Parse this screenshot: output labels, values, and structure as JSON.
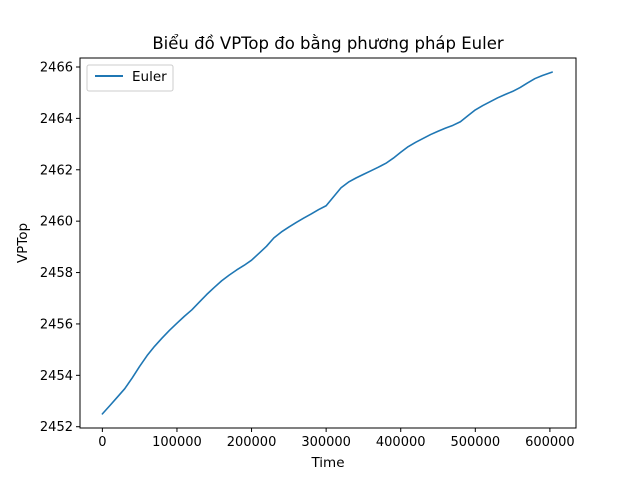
{
  "chart_data": {
    "type": "line",
    "title": "Biểu đồ VPTop đo bằng phương pháp Euler",
    "xlabel": "Time",
    "ylabel": "VPTop",
    "xlim": [
      -30000,
      635000
    ],
    "ylim": [
      2451.95,
      2466.35
    ],
    "xticks": [
      0,
      100000,
      200000,
      300000,
      400000,
      500000,
      600000
    ],
    "yticks": [
      2452,
      2454,
      2456,
      2458,
      2460,
      2462,
      2464,
      2466
    ],
    "grid": false,
    "legend_position": "upper-left",
    "series": [
      {
        "name": "Euler",
        "color": "#1f77b4",
        "x": [
          0,
          10000,
          20000,
          30000,
          40000,
          50000,
          60000,
          70000,
          80000,
          90000,
          100000,
          110000,
          120000,
          130000,
          140000,
          150000,
          160000,
          170000,
          180000,
          190000,
          200000,
          210000,
          220000,
          230000,
          240000,
          250000,
          260000,
          270000,
          280000,
          290000,
          300000,
          310000,
          320000,
          330000,
          340000,
          350000,
          360000,
          370000,
          380000,
          390000,
          400000,
          410000,
          420000,
          430000,
          440000,
          450000,
          460000,
          470000,
          480000,
          490000,
          500000,
          510000,
          520000,
          530000,
          540000,
          550000,
          560000,
          570000,
          580000,
          590000,
          603000
        ],
        "values": [
          2452.5,
          2452.82,
          2453.15,
          2453.48,
          2453.9,
          2454.35,
          2454.77,
          2455.13,
          2455.45,
          2455.75,
          2456.03,
          2456.3,
          2456.55,
          2456.85,
          2457.15,
          2457.42,
          2457.68,
          2457.9,
          2458.1,
          2458.28,
          2458.48,
          2458.75,
          2459.02,
          2459.35,
          2459.58,
          2459.77,
          2459.95,
          2460.12,
          2460.28,
          2460.45,
          2460.6,
          2460.95,
          2461.3,
          2461.52,
          2461.68,
          2461.82,
          2461.96,
          2462.1,
          2462.25,
          2462.45,
          2462.68,
          2462.9,
          2463.07,
          2463.22,
          2463.37,
          2463.5,
          2463.62,
          2463.73,
          2463.87,
          2464.1,
          2464.33,
          2464.5,
          2464.65,
          2464.8,
          2464.93,
          2465.05,
          2465.2,
          2465.38,
          2465.55,
          2465.67,
          2465.8
        ]
      }
    ]
  }
}
